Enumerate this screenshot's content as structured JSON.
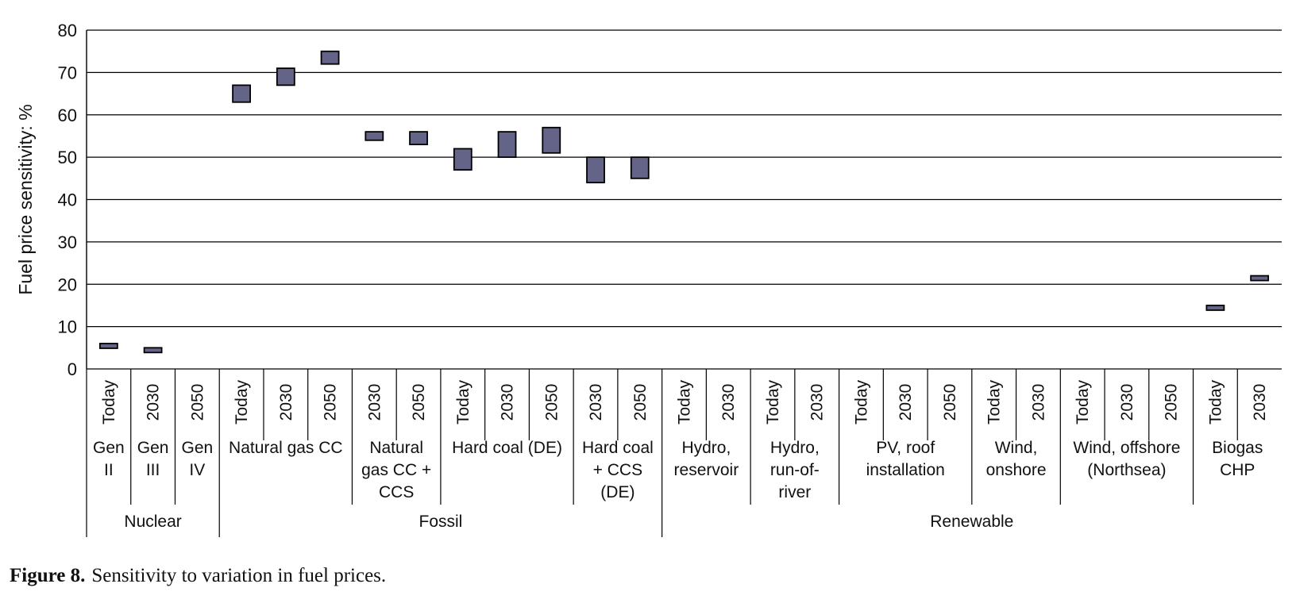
{
  "chart_data": {
    "type": "floating-bar",
    "ylabel": "Fuel price sensitivity: %",
    "ylim": [
      0,
      80
    ],
    "yticks": [
      0,
      10,
      20,
      30,
      40,
      50,
      60,
      70,
      80
    ],
    "grid": true,
    "bar_color": "#646488",
    "columns": [
      {
        "period": "Today",
        "low": 5,
        "high": 6
      },
      {
        "period": "2030",
        "low": 4,
        "high": 5
      },
      {
        "period": "2050",
        "low": null,
        "high": null
      },
      {
        "period": "Today",
        "low": 63,
        "high": 67
      },
      {
        "period": "2030",
        "low": 67,
        "high": 71
      },
      {
        "period": "2050",
        "low": 72,
        "high": 75
      },
      {
        "period": "2030",
        "low": 54,
        "high": 56
      },
      {
        "period": "2050",
        "low": 53,
        "high": 56
      },
      {
        "period": "Today",
        "low": 47,
        "high": 52
      },
      {
        "period": "2030",
        "low": 50,
        "high": 56
      },
      {
        "period": "2050",
        "low": 51,
        "high": 57
      },
      {
        "period": "2030",
        "low": 44,
        "high": 50
      },
      {
        "period": "2050",
        "low": 45,
        "high": 50
      },
      {
        "period": "Today",
        "low": null,
        "high": null
      },
      {
        "period": "2030",
        "low": null,
        "high": null
      },
      {
        "period": "Today",
        "low": null,
        "high": null
      },
      {
        "period": "2030",
        "low": null,
        "high": null
      },
      {
        "period": "Today",
        "low": null,
        "high": null
      },
      {
        "period": "2030",
        "low": null,
        "high": null
      },
      {
        "period": "2050",
        "low": null,
        "high": null
      },
      {
        "period": "Today",
        "low": null,
        "high": null
      },
      {
        "period": "2030",
        "low": null,
        "high": null
      },
      {
        "period": "Today",
        "low": null,
        "high": null
      },
      {
        "period": "2030",
        "low": null,
        "high": null
      },
      {
        "period": "2050",
        "low": null,
        "high": null
      },
      {
        "period": "Today",
        "low": 14,
        "high": 15
      },
      {
        "period": "2030",
        "low": 21,
        "high": 22
      }
    ],
    "technologies": [
      {
        "label": [
          "Gen",
          "II"
        ],
        "span": 1
      },
      {
        "label": [
          "Gen",
          "III"
        ],
        "span": 1
      },
      {
        "label": [
          "Gen",
          "IV"
        ],
        "span": 1
      },
      {
        "label": [
          "Natural gas CC"
        ],
        "span": 3
      },
      {
        "label": [
          "Natural",
          "gas CC +",
          "CCS"
        ],
        "span": 2
      },
      {
        "label": [
          "Hard coal (DE)"
        ],
        "span": 3
      },
      {
        "label": [
          "Hard coal",
          "+ CCS",
          "(DE)"
        ],
        "span": 2
      },
      {
        "label": [
          "Hydro,",
          "reservoir"
        ],
        "span": 2
      },
      {
        "label": [
          "Hydro,",
          "run-of-",
          "river"
        ],
        "span": 2
      },
      {
        "label": [
          "PV, roof",
          "installation"
        ],
        "span": 3
      },
      {
        "label": [
          "Wind,",
          "onshore"
        ],
        "span": 2
      },
      {
        "label": [
          "Wind, offshore",
          "(Northsea)"
        ],
        "span": 3
      },
      {
        "label": [
          "Biogas",
          "CHP"
        ],
        "span": 2
      }
    ],
    "groups": [
      {
        "label": "Nuclear",
        "span": 3
      },
      {
        "label": "Fossil",
        "span": 10
      },
      {
        "label": "Renewable",
        "span": 14
      }
    ]
  },
  "caption": {
    "label": "Figure 8.",
    "text": "Sensitivity to variation in fuel prices."
  }
}
